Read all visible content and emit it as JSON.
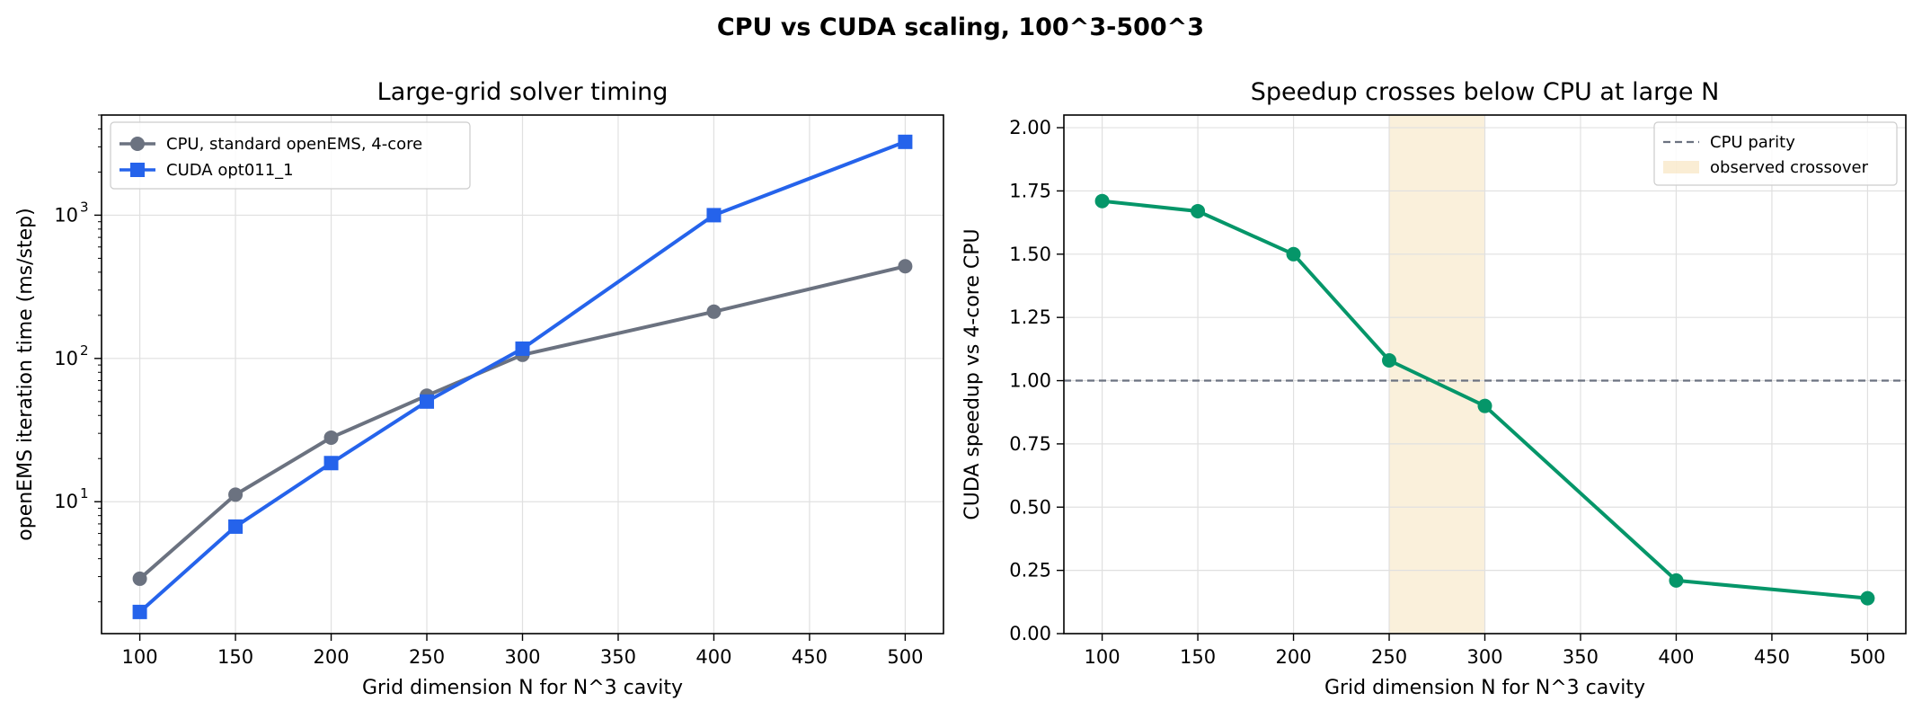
{
  "figure": {
    "suptitle": "CPU vs CUDA scaling, 100^3-500^3"
  },
  "chart_data": [
    {
      "type": "line",
      "title": "Large-grid solver timing",
      "xlabel": "Grid dimension N for N^3 cavity",
      "ylabel": "openEMS iteration time (ms/step)",
      "yscale": "log",
      "xlim": [
        80,
        520
      ],
      "ylim": [
        1.2,
        5000
      ],
      "xticks": [
        100,
        150,
        200,
        250,
        300,
        350,
        400,
        450,
        500
      ],
      "yticks": [
        10,
        100,
        1000
      ],
      "yticklabels": [
        "10",
        "10",
        "10"
      ],
      "yticksup": [
        "1",
        "2",
        "3"
      ],
      "grid": true,
      "legend": "top-left",
      "series": [
        {
          "name": "CPU, standard openEMS, 4-core",
          "color": "#6b7280",
          "marker": "circle",
          "x": [
            100,
            150,
            200,
            250,
            300,
            400,
            500
          ],
          "y": [
            2.9,
            11.2,
            28,
            55,
            106,
            212,
            440
          ]
        },
        {
          "name": "CUDA opt011_1",
          "color": "#2563eb",
          "marker": "square",
          "x": [
            100,
            150,
            200,
            250,
            300,
            400,
            500
          ],
          "y": [
            1.7,
            6.7,
            18.6,
            50,
            117,
            1000,
            3250
          ]
        }
      ]
    },
    {
      "type": "line",
      "title": "Speedup crosses below CPU at large N",
      "xlabel": "Grid dimension N for N^3 cavity",
      "ylabel": "CUDA speedup vs 4-core CPU",
      "yscale": "linear",
      "xlim": [
        80,
        520
      ],
      "ylim": [
        0,
        2.05
      ],
      "xticks": [
        100,
        150,
        200,
        250,
        300,
        350,
        400,
        450,
        500
      ],
      "yticks": [
        0,
        0.25,
        0.5,
        0.75,
        1.0,
        1.25,
        1.5,
        1.75,
        2.0
      ],
      "yticklabels": [
        "0.00",
        "0.25",
        "0.50",
        "0.75",
        "1.00",
        "1.25",
        "1.50",
        "1.75",
        "2.00"
      ],
      "grid": true,
      "legend": "top-right",
      "series": [
        {
          "name": "",
          "color": "#059669",
          "marker": "circle",
          "x": [
            100,
            150,
            200,
            250,
            300,
            400,
            500
          ],
          "y": [
            1.71,
            1.67,
            1.5,
            1.08,
            0.9,
            0.21,
            0.14
          ]
        }
      ],
      "hline": {
        "y": 1.0,
        "name": "CPU parity",
        "color": "#6b7280"
      },
      "span": {
        "x": [
          250,
          300
        ],
        "name": "observed crossover",
        "color": "#f5deb0"
      }
    }
  ]
}
